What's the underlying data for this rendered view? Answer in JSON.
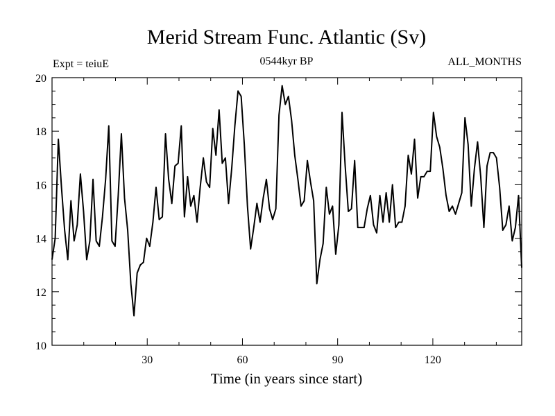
{
  "chart_data": {
    "type": "line",
    "title": "Merid Stream Func. Atlantic (Sv)",
    "subtitle_left": "Expt = teiuE",
    "subtitle_center": "0544kyr BP",
    "subtitle_right": "ALL_MONTHS",
    "xlabel": "Time (in years since start)",
    "ylabel": "",
    "xlim": [
      0,
      148
    ],
    "ylim": [
      10,
      20
    ],
    "x_ticks": [
      30,
      60,
      90,
      120
    ],
    "x_tick_labels": [
      "30",
      "60",
      "90",
      "120"
    ],
    "x_minor_step": 10,
    "y_ticks": [
      10,
      12,
      14,
      16,
      18,
      20
    ],
    "y_tick_labels": [
      "10",
      "12",
      "14",
      "16",
      "18",
      "20"
    ],
    "y_minor_step": 0.5,
    "grid": false,
    "line_color": "#000000",
    "series": [
      {
        "name": "Merid Stream Func. Atlantic",
        "values": [
          13.2,
          14.0,
          17.7,
          15.9,
          14.3,
          13.2,
          15.4,
          13.9,
          14.5,
          16.4,
          15.0,
          13.2,
          13.9,
          16.2,
          13.9,
          13.7,
          14.8,
          16.2,
          18.2,
          13.9,
          13.7,
          15.6,
          17.9,
          15.5,
          14.3,
          12.3,
          11.1,
          12.7,
          13.0,
          13.1,
          14.0,
          13.7,
          14.6,
          15.9,
          14.7,
          14.8,
          17.9,
          16.2,
          15.3,
          16.7,
          16.8,
          18.2,
          14.8,
          16.3,
          15.2,
          15.6,
          14.6,
          15.9,
          17.0,
          16.1,
          15.9,
          18.1,
          17.1,
          18.8,
          16.8,
          17.0,
          15.3,
          16.6,
          18.2,
          19.5,
          19.3,
          17.5,
          15.2,
          13.6,
          14.4,
          15.3,
          14.6,
          15.5,
          16.2,
          15.1,
          14.7,
          15.1,
          18.6,
          19.7,
          19.0,
          19.3,
          18.4,
          17.1,
          16.2,
          15.2,
          15.4,
          16.9,
          16.1,
          15.4,
          12.3,
          13.2,
          13.8,
          15.9,
          14.9,
          15.2,
          13.4,
          14.5,
          18.7,
          16.7,
          15.0,
          15.1,
          16.9,
          14.4,
          14.4,
          14.4,
          15.1,
          15.6,
          14.5,
          14.2,
          15.6,
          14.6,
          15.7,
          14.6,
          16.0,
          14.4,
          14.6,
          14.6,
          15.2,
          17.1,
          16.4,
          17.7,
          15.5,
          16.3,
          16.3,
          16.5,
          16.5,
          18.7,
          17.8,
          17.4,
          16.6,
          15.6,
          15.0,
          15.2,
          14.9,
          15.3,
          15.7,
          18.5,
          17.5,
          15.2,
          16.6,
          17.6,
          16.3,
          14.4,
          16.7,
          17.2,
          17.2,
          17.0,
          15.9,
          14.3,
          14.5,
          15.2,
          13.9,
          14.4,
          15.6,
          12.9
        ]
      }
    ]
  }
}
